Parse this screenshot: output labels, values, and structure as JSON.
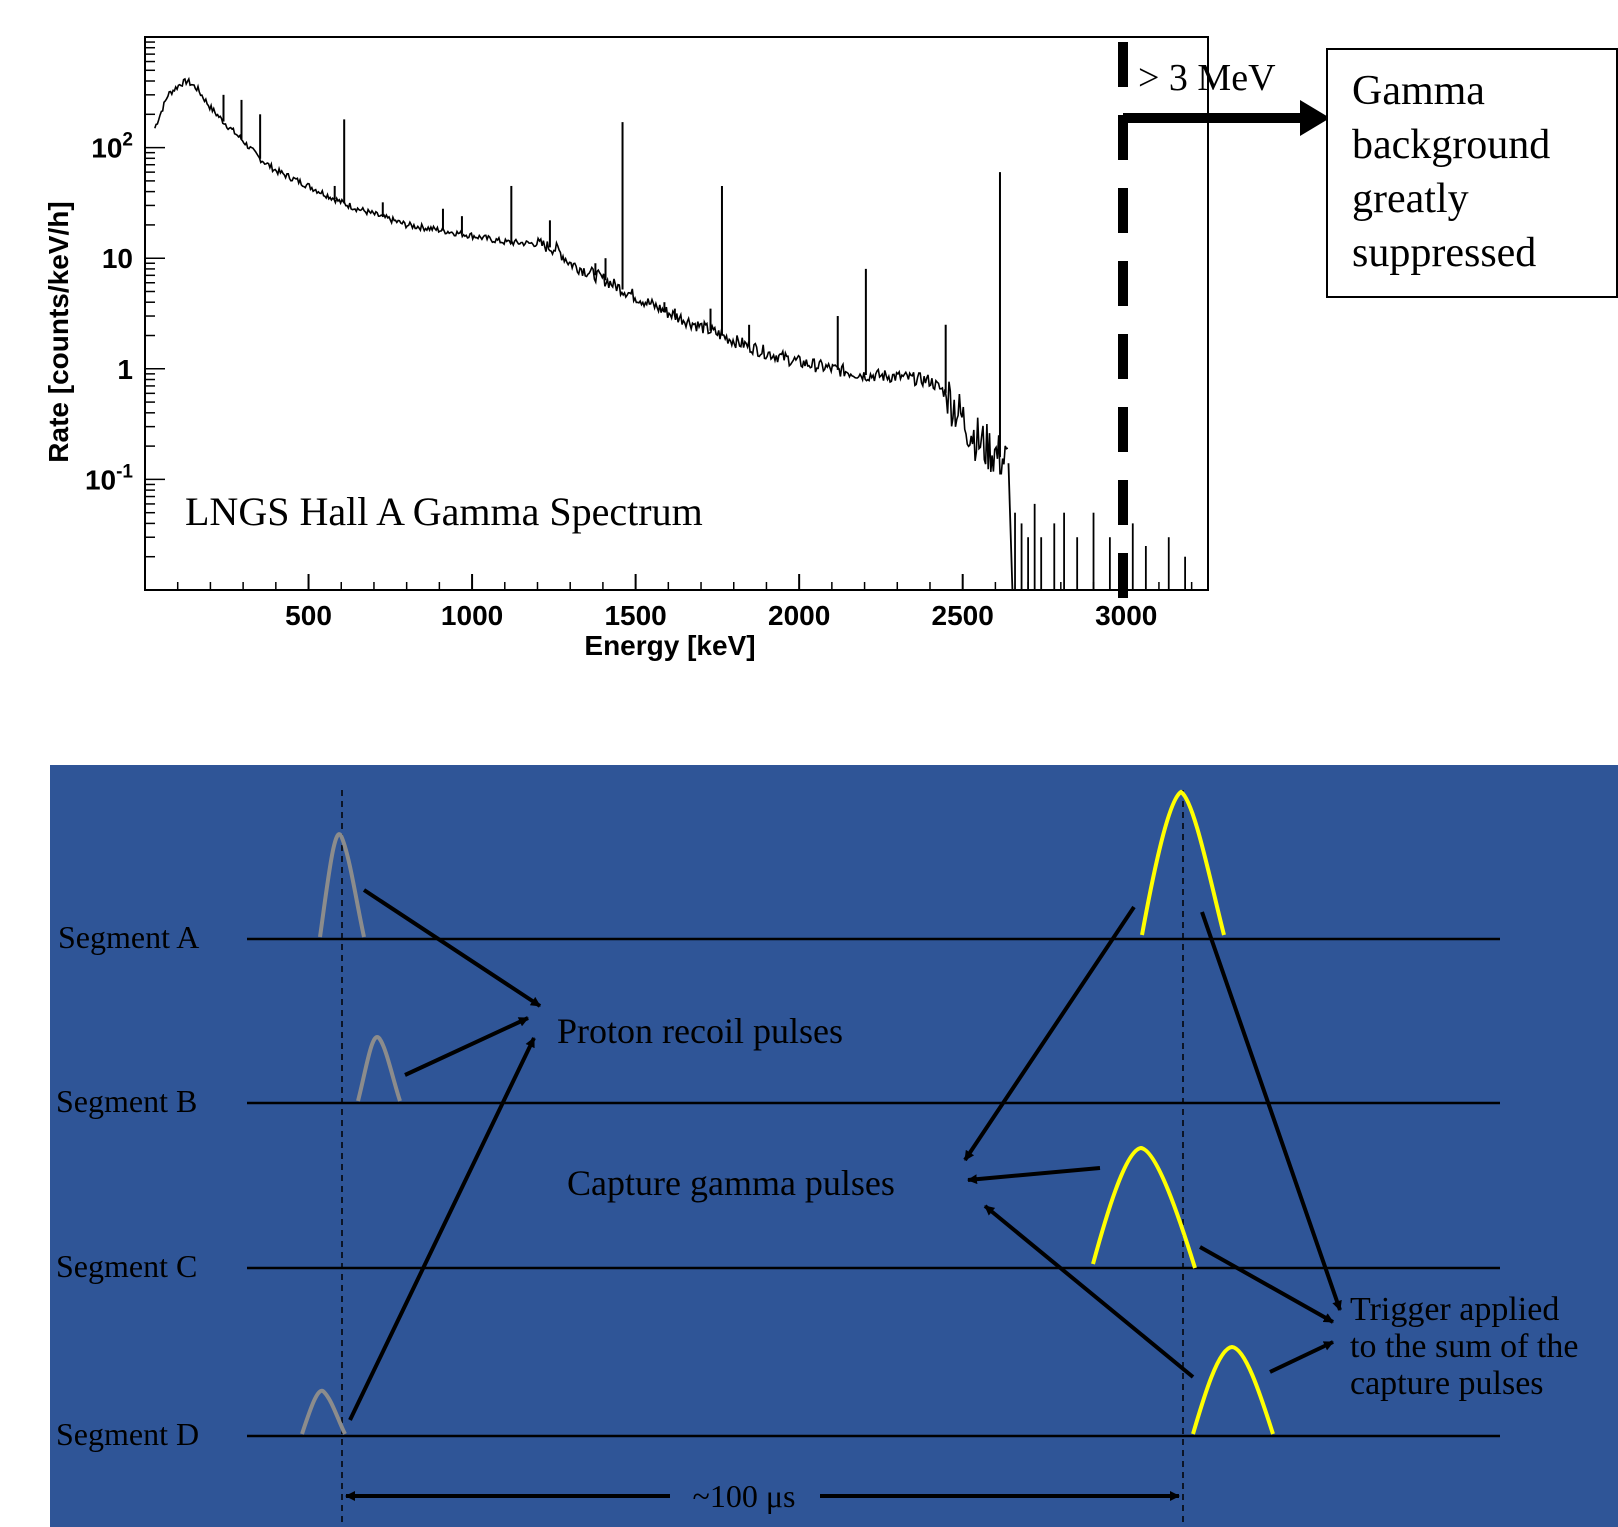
{
  "chart_data": {
    "type": "line",
    "title": "LNGS Hall A Gamma Spectrum",
    "xlabel": "Energy [keV]",
    "ylabel": "Rate [counts/keV/h]",
    "xlim": [
      0,
      3250
    ],
    "ylim": [
      0.01,
      1000
    ],
    "yscale": "log",
    "x_ticks": [
      "500",
      "1000",
      "1500",
      "2000",
      "2500",
      "3000"
    ],
    "y_ticks": [
      {
        "base": "10",
        "exp": "2"
      },
      {
        "base": "10",
        "exp": ""
      },
      {
        "base": "1",
        "exp": ""
      },
      {
        "base": "10",
        "exp": "-1"
      }
    ],
    "continuum": [
      [
        30,
        150
      ],
      [
        70,
        300
      ],
      [
        110,
        380
      ],
      [
        130,
        400
      ],
      [
        160,
        340
      ],
      [
        200,
        230
      ],
      [
        250,
        160
      ],
      [
        300,
        115
      ],
      [
        350,
        80
      ],
      [
        400,
        62
      ],
      [
        500,
        45
      ],
      [
        550,
        38
      ],
      [
        600,
        32
      ],
      [
        650,
        28
      ],
      [
        700,
        25
      ],
      [
        800,
        20
      ],
      [
        900,
        18
      ],
      [
        1000,
        16
      ],
      [
        1100,
        14
      ],
      [
        1200,
        13.5
      ],
      [
        1260,
        12
      ],
      [
        1300,
        9
      ],
      [
        1400,
        6.5
      ],
      [
        1500,
        4.5
      ],
      [
        1600,
        3.2
      ],
      [
        1700,
        2.4
      ],
      [
        1800,
        1.8
      ],
      [
        1900,
        1.4
      ],
      [
        2000,
        1.15
      ],
      [
        2100,
        1.0
      ],
      [
        2200,
        0.88
      ],
      [
        2300,
        0.85
      ],
      [
        2400,
        0.78
      ],
      [
        2450,
        0.6
      ],
      [
        2500,
        0.35
      ],
      [
        2550,
        0.22
      ],
      [
        2600,
        0.17
      ],
      [
        2640,
        0.14
      ]
    ],
    "peaks": [
      {
        "x": 240,
        "y": 300
      },
      {
        "x": 295,
        "y": 270
      },
      {
        "x": 352,
        "y": 200
      },
      {
        "x": 609,
        "y": 180
      },
      {
        "x": 580,
        "y": 45
      },
      {
        "x": 727,
        "y": 32
      },
      {
        "x": 911,
        "y": 28
      },
      {
        "x": 969,
        "y": 24
      },
      {
        "x": 1120,
        "y": 45
      },
      {
        "x": 1238,
        "y": 22
      },
      {
        "x": 1377,
        "y": 9
      },
      {
        "x": 1408,
        "y": 10
      },
      {
        "x": 1460,
        "y": 170
      },
      {
        "x": 1588,
        "y": 4
      },
      {
        "x": 1620,
        "y": 3.5
      },
      {
        "x": 1729,
        "y": 3.5
      },
      {
        "x": 1764,
        "y": 45
      },
      {
        "x": 1847,
        "y": 2.5
      },
      {
        "x": 2118,
        "y": 3.0
      },
      {
        "x": 2204,
        "y": 8
      },
      {
        "x": 2448,
        "y": 2.5
      },
      {
        "x": 2614,
        "y": 60
      }
    ],
    "tail": [
      [
        2660,
        0.05
      ],
      [
        2680,
        0.04
      ],
      [
        2700,
        0.03
      ],
      [
        2720,
        0.06
      ],
      [
        2740,
        0.03
      ],
      [
        2780,
        0.04
      ],
      [
        2810,
        0.05
      ],
      [
        2850,
        0.03
      ],
      [
        2900,
        0.05
      ],
      [
        2950,
        0.03
      ],
      [
        3020,
        0.04
      ],
      [
        3060,
        0.025
      ],
      [
        3130,
        0.03
      ],
      [
        3180,
        0.02
      ]
    ],
    "threshold_label": "> 3 MeV",
    "threshold_x": 3000,
    "annotation": [
      "Gamma",
      "background",
      "greatly",
      "suppressed"
    ]
  },
  "diagram": {
    "segments": [
      "Segment A",
      "Segment B",
      "Segment C",
      "Segment D"
    ],
    "proton_label": "Proton recoil pulses",
    "capture_label": "Capture gamma pulses",
    "trigger_label": [
      "Trigger applied",
      "to the sum of the",
      "capture pulses"
    ],
    "interval_label": "~100 μs",
    "colors": {
      "background": "#2f5597",
      "proton_pulse": "#8c8c8c",
      "capture_pulse": "#ffff00",
      "arrow": "#000000"
    }
  }
}
